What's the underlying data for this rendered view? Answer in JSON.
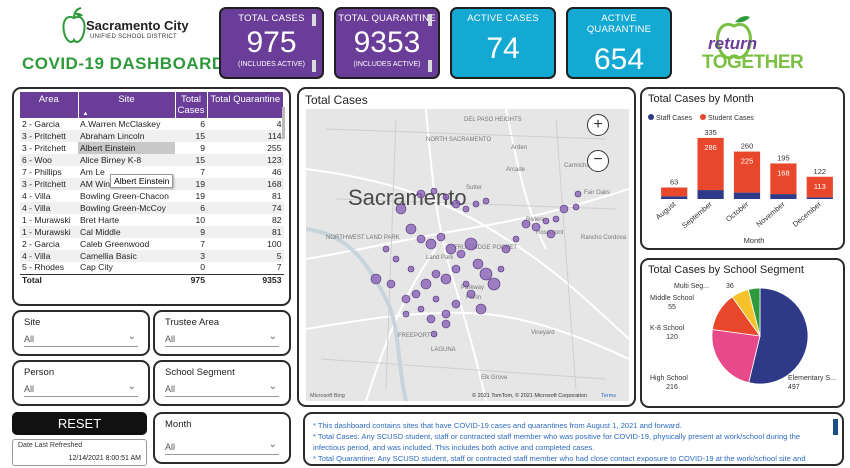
{
  "header": {
    "org_name": "Sacramento City",
    "org_sub": "UNIFIED SCHOOL DISTRICT",
    "dashboard_title": "COVID-19 DASHBOARD",
    "return_logo_1": "return",
    "return_logo_2": "TOGETHER"
  },
  "kpis": [
    {
      "label": "TOTAL CASES",
      "value": "975",
      "sub": "(INCLUDES ACTIVE)",
      "color": "#6a3d98"
    },
    {
      "label": "TOTAL QUARANTINE",
      "value": "9353",
      "sub": "(INCLUDES ACTIVE)",
      "color": "#6a3d98"
    },
    {
      "label": "ACTIVE CASES",
      "value": "74",
      "sub": "",
      "color": "#13a9d2"
    },
    {
      "label": "ACTIVE QUARANTINE",
      "value": "654",
      "sub": "",
      "color": "#13a9d2"
    }
  ],
  "table": {
    "headers": [
      "Area",
      "Site",
      "Total Cases",
      "Total Quarantine"
    ],
    "rows": [
      [
        "2 - Garcia",
        "A.Warren McClaskey",
        "6",
        "4"
      ],
      [
        "3 - Pritchett",
        "Abraham Lincoln",
        "15",
        "114"
      ],
      [
        "3 - Pritchett",
        "Albert Einstein",
        "9",
        "255"
      ],
      [
        "6 - Woo",
        "Alice Birney K-8",
        "15",
        "123"
      ],
      [
        "7 - Phillips",
        "Am Le",
        "7",
        "46"
      ],
      [
        "3 - Pritchett",
        "AM Winn",
        "19",
        "168"
      ],
      [
        "4 - Villa",
        "Bowling Green-Chacon",
        "19",
        "81"
      ],
      [
        "4 - Villa",
        "Bowling Green-McCoy",
        "6",
        "74"
      ],
      [
        "1 - Murawski",
        "Bret Harte",
        "10",
        "82"
      ],
      [
        "1 - Murawski",
        "Cal Middle",
        "9",
        "81"
      ],
      [
        "2 - Garcia",
        "Caleb Greenwood",
        "7",
        "100"
      ],
      [
        "4 - Villa",
        "Camellia Basic",
        "3",
        "5"
      ],
      [
        "5 - Rhodes",
        "Cap City",
        "0",
        "7"
      ]
    ],
    "total_label": "Total",
    "total_cases": "975",
    "total_quarantine": "9353",
    "tooltip": "Albert Einstein"
  },
  "filters": {
    "site": {
      "label": "Site",
      "value": "All"
    },
    "trustee": {
      "label": "Trustee Area",
      "value": "All"
    },
    "person": {
      "label": "Person",
      "value": "All"
    },
    "segment": {
      "label": "School Segment",
      "value": "All"
    },
    "month": {
      "label": "Month",
      "value": "All"
    }
  },
  "reset_label": "RESET",
  "refresh": {
    "label": "Date Last Refreshed",
    "value": "12/14/2021 8:00:51 AM"
  },
  "map": {
    "title": "Total Cases",
    "city": "Sacramento",
    "labels": [
      "DEL PASO HEIGHTS",
      "NORTH SACRAMENTO",
      "Arden",
      "Arcade",
      "Carmichael",
      "Rancho Cordova",
      "Riviera",
      "Rosemont",
      "Fair Oaks",
      "Sutter",
      "Land Park",
      "Parkway",
      "Florin",
      "FRUITRIDGE POCKET",
      "FREEPORT",
      "Vineyard",
      "Elk Grove",
      "LAGUNA",
      "NORTHWEST LAND PARK"
    ],
    "credit": "© 2021 TomTom, © 2021 Microsoft Corporation",
    "terms": "Terms",
    "bing": "Microsoft Bing"
  },
  "notes": [
    "* This dashboard contains sites that have COVID-19 cases and quarantines from August 1, 2021 and forward.",
    "* Total Cases: Any SCUSD student, staff or contracted staff member who was positive for COVID-19, physically present at work/school during the",
    "infectious period, and was included. This includes both active and completed cases.",
    "* Total Quarantine: Any SCUSD student, staff or contracted staff member who had close contact exposure to COVID-19 at the work/school site and"
  ],
  "chart_data": [
    {
      "type": "bar",
      "title": "Total Cases by Month",
      "xlabel": "Month",
      "categories": [
        "August",
        "September",
        "October",
        "November",
        "December"
      ],
      "series": [
        {
          "name": "Staff Cases",
          "color": "#2e3a87",
          "values": [
            15,
            49,
            35,
            27,
            9
          ]
        },
        {
          "name": "Student Cases",
          "color": "#e8472b",
          "values": [
            48,
            286,
            225,
            168,
            113
          ]
        }
      ],
      "totals": [
        63,
        335,
        260,
        195,
        122
      ],
      "ylim": [
        0,
        340
      ],
      "legend": "top-left"
    },
    {
      "type": "pie",
      "title": "Total Cases by School Segment",
      "labels": [
        "Elementary S...",
        "High School",
        "K-8 School",
        "Middle School",
        "Multi Seg..."
      ],
      "values": [
        497,
        216,
        120,
        55,
        36
      ],
      "colors": [
        "#2e3a87",
        "#e8498a",
        "#e8472b",
        "#f5c22b",
        "#2f9a3d"
      ]
    }
  ]
}
